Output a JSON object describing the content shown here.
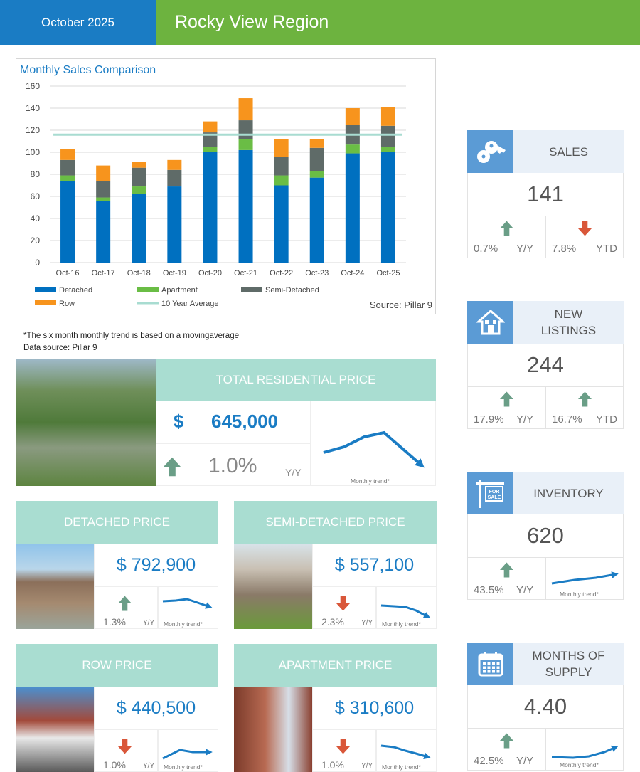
{
  "header": {
    "date": "October 2025",
    "region": "Rocky View Region"
  },
  "colors": {
    "blue": "#1a7cc4",
    "green": "#6db33f",
    "teal": "#a9ddd1",
    "up": "#6a9e87",
    "down": "#d9573a"
  },
  "chart_data": {
    "type": "bar",
    "stacked": true,
    "title": "Monthly Sales Comparison",
    "categories": [
      "Oct-16",
      "Oct-17",
      "Oct-18",
      "Oct-19",
      "Oct-20",
      "Oct-21",
      "Oct-22",
      "Oct-23",
      "Oct-24",
      "Oct-25"
    ],
    "series": [
      {
        "name": "Detached",
        "color": "#0070c0",
        "values": [
          74,
          56,
          62,
          69,
          100,
          102,
          70,
          77,
          99,
          100
        ]
      },
      {
        "name": "Apartment",
        "color": "#6abd45",
        "values": [
          5,
          3,
          7,
          0,
          5,
          10,
          9,
          6,
          8,
          5
        ]
      },
      {
        "name": "Semi-Detached",
        "color": "#5f6b68",
        "values": [
          14,
          15,
          17,
          15,
          13,
          17,
          17,
          21,
          18,
          19
        ]
      },
      {
        "name": "Row",
        "color": "#f7941d",
        "values": [
          10,
          14,
          5,
          9,
          10,
          20,
          16,
          8,
          15,
          17
        ]
      }
    ],
    "reference_line": {
      "name": "10 Year Average",
      "value": 116,
      "color": "#a8dcd1"
    },
    "ylim": [
      0,
      160
    ],
    "yticks": [
      0,
      20,
      40,
      60,
      80,
      100,
      120,
      140,
      160
    ],
    "grid": true,
    "legend": "bottom",
    "source": "Source: Pillar 9"
  },
  "notes": {
    "line1": "*The six month monthly trend is based on a movingaverage",
    "line2": "Data source: Pillar 9"
  },
  "total": {
    "title": "TOTAL RESIDENTIAL PRICE",
    "currency": "$",
    "price": "645,000",
    "change": "1.0%",
    "direction": "up",
    "period": "Y/Y",
    "trend_label": "Monthly trend*"
  },
  "types": [
    {
      "title": "DETACHED PRICE",
      "price": "$ 792,900",
      "change": "1.3%",
      "direction": "up",
      "period": "Y/Y",
      "trend_label": "Monthly trend*"
    },
    {
      "title": "SEMI-DETACHED PRICE",
      "price": "$ 557,100",
      "change": "2.3%",
      "direction": "down",
      "period": "Y/Y",
      "trend_label": "Monthly trend*"
    },
    {
      "title": "ROW PRICE",
      "price": "$ 440,500",
      "change": "1.0%",
      "direction": "down",
      "period": "Y/Y",
      "trend_label": "Monthly trend*"
    },
    {
      "title": "APARTMENT PRICE",
      "price": "$ 310,600",
      "change": "1.0%",
      "direction": "down",
      "period": "Y/Y",
      "trend_label": "Monthly trend*"
    }
  ],
  "stats": [
    {
      "label": "SALES",
      "icon": "keys-icon",
      "value": "141",
      "a_change": "0.7%",
      "a_dir": "up",
      "a_period": "Y/Y",
      "b_change": "7.8%",
      "b_dir": "down",
      "b_period": "YTD"
    },
    {
      "label": "NEW LISTINGS",
      "icon": "house-icon",
      "value": "244",
      "a_change": "17.9%",
      "a_dir": "up",
      "a_period": "Y/Y",
      "b_change": "16.7%",
      "b_dir": "up",
      "b_period": "YTD"
    },
    {
      "label": "INVENTORY",
      "icon": "for-sale-sign-icon",
      "sign_text": "FOR SALE",
      "value": "620",
      "a_change": "43.5%",
      "a_dir": "up",
      "a_period": "Y/Y",
      "trend_label": "Monthly trend*"
    },
    {
      "label": "MONTHS OF SUPPLY",
      "icon": "calendar-icon",
      "value": "4.40",
      "a_change": "42.5%",
      "a_dir": "up",
      "a_period": "Y/Y",
      "trend_label": "Monthly trend*"
    }
  ]
}
